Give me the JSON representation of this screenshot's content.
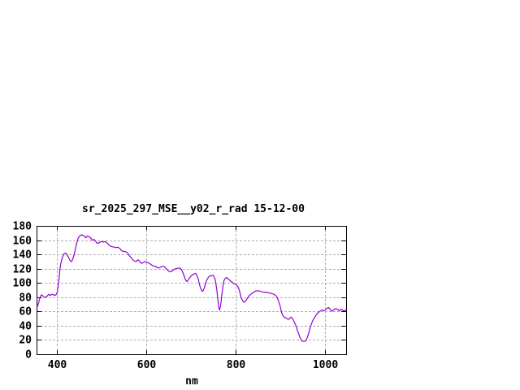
{
  "window": {
    "background": "#ffffff"
  },
  "chart": {
    "title": "sr_2025_297_MSE__y02_r_rad 15-12-00",
    "xlabel": "nm"
  },
  "chart_data": {
    "type": "line",
    "title": "sr_2025_297_MSE__y02_r_rad 15-12-00",
    "xlabel": "nm",
    "ylabel": "",
    "xlim": [
      355.5,
      1047
    ],
    "ylim": [
      0,
      180
    ],
    "x_ticks": [
      400,
      600,
      800,
      1000
    ],
    "y_ticks": [
      0,
      20,
      40,
      60,
      80,
      100,
      120,
      140,
      160,
      180
    ],
    "grid": true,
    "legend": "none",
    "colors": {
      "line": "#9400d3",
      "grid": "#adadad",
      "frame": "#000000",
      "text": "#000000",
      "background": "#ffffff"
    },
    "series": [
      {
        "name": "sr_2025_297_MSE__y02_r_rad",
        "points": [
          [
            356,
            65
          ],
          [
            358,
            68
          ],
          [
            360,
            72
          ],
          [
            362,
            77
          ],
          [
            364,
            81
          ],
          [
            366,
            83
          ],
          [
            368,
            83
          ],
          [
            370,
            81.5
          ],
          [
            372,
            80.5
          ],
          [
            374,
            79.5
          ],
          [
            376,
            80
          ],
          [
            378,
            81
          ],
          [
            380,
            82
          ],
          [
            382,
            83.5
          ],
          [
            384,
            84
          ],
          [
            386,
            82.5
          ],
          [
            388,
            83
          ],
          [
            390,
            84
          ],
          [
            392,
            84
          ],
          [
            394,
            83
          ],
          [
            396,
            82.5
          ],
          [
            398,
            83
          ],
          [
            400,
            84
          ],
          [
            402,
            88
          ],
          [
            404,
            96
          ],
          [
            406,
            108
          ],
          [
            408,
            120
          ],
          [
            410,
            128
          ],
          [
            412,
            133
          ],
          [
            414,
            137
          ],
          [
            416,
            140
          ],
          [
            418,
            141.5
          ],
          [
            420,
            142
          ],
          [
            422,
            141
          ],
          [
            424,
            139.5
          ],
          [
            426,
            137
          ],
          [
            428,
            134.5
          ],
          [
            430,
            132
          ],
          [
            432,
            130.5
          ],
          [
            434,
            130
          ],
          [
            436,
            133
          ],
          [
            438,
            137
          ],
          [
            440,
            141
          ],
          [
            442,
            147
          ],
          [
            444,
            153
          ],
          [
            446,
            158
          ],
          [
            448,
            162
          ],
          [
            450,
            164.5
          ],
          [
            452,
            166
          ],
          [
            454,
            166.5
          ],
          [
            456,
            167.5
          ],
          [
            458,
            167
          ],
          [
            460,
            166.5
          ],
          [
            462,
            166
          ],
          [
            464,
            164
          ],
          [
            466,
            163.5
          ],
          [
            468,
            165.5
          ],
          [
            470,
            165.5
          ],
          [
            472,
            165
          ],
          [
            474,
            164.5
          ],
          [
            476,
            163.5
          ],
          [
            478,
            161.5
          ],
          [
            480,
            160
          ],
          [
            482,
            160.5
          ],
          [
            484,
            161
          ],
          [
            486,
            159.5
          ],
          [
            488,
            158
          ],
          [
            490,
            156
          ],
          [
            492,
            155.5
          ],
          [
            494,
            156
          ],
          [
            496,
            156.5
          ],
          [
            498,
            157.5
          ],
          [
            500,
            158
          ],
          [
            503,
            157.5
          ],
          [
            506,
            157.5
          ],
          [
            509,
            158
          ],
          [
            512,
            156.5
          ],
          [
            515,
            155
          ],
          [
            518,
            152.5
          ],
          [
            521,
            151.5
          ],
          [
            524,
            151
          ],
          [
            527,
            150.5
          ],
          [
            530,
            150
          ],
          [
            533,
            149.5
          ],
          [
            536,
            150
          ],
          [
            539,
            149.5
          ],
          [
            542,
            148
          ],
          [
            545,
            145.5
          ],
          [
            548,
            144.5
          ],
          [
            551,
            144
          ],
          [
            554,
            144
          ],
          [
            557,
            143
          ],
          [
            560,
            141
          ],
          [
            563,
            138
          ],
          [
            566,
            136
          ],
          [
            569,
            133.5
          ],
          [
            572,
            131.5
          ],
          [
            575,
            130.5
          ],
          [
            578,
            130
          ],
          [
            580,
            131.5
          ],
          [
            582,
            132.5
          ],
          [
            584,
            131.5
          ],
          [
            586,
            130
          ],
          [
            588,
            128
          ],
          [
            590,
            127.5
          ],
          [
            592,
            128
          ],
          [
            594,
            128.5
          ],
          [
            596,
            129.5
          ],
          [
            598,
            130
          ],
          [
            601,
            129
          ],
          [
            604,
            128.5
          ],
          [
            607,
            127.5
          ],
          [
            610,
            126.5
          ],
          [
            613,
            125
          ],
          [
            616,
            124
          ],
          [
            619,
            123.5
          ],
          [
            622,
            123
          ],
          [
            625,
            121.5
          ],
          [
            628,
            121
          ],
          [
            631,
            121.5
          ],
          [
            634,
            122.5
          ],
          [
            637,
            123.5
          ],
          [
            640,
            123
          ],
          [
            643,
            121.5
          ],
          [
            646,
            119.5
          ],
          [
            649,
            117.5
          ],
          [
            652,
            116
          ],
          [
            655,
            115.5
          ],
          [
            658,
            116.5
          ],
          [
            661,
            118
          ],
          [
            664,
            119.5
          ],
          [
            667,
            120
          ],
          [
            670,
            120.5
          ],
          [
            673,
            121
          ],
          [
            676,
            120.5
          ],
          [
            679,
            119
          ],
          [
            681,
            116.5
          ],
          [
            683,
            113.5
          ],
          [
            685,
            110
          ],
          [
            687,
            106.5
          ],
          [
            689,
            103.5
          ],
          [
            691,
            102
          ],
          [
            693,
            103
          ],
          [
            695,
            105
          ],
          [
            698,
            107.5
          ],
          [
            701,
            110
          ],
          [
            704,
            111.5
          ],
          [
            707,
            112.5
          ],
          [
            710,
            113.5
          ],
          [
            712,
            112.5
          ],
          [
            714,
            110
          ],
          [
            716,
            106.5
          ],
          [
            718,
            102
          ],
          [
            720,
            96.5
          ],
          [
            722,
            93
          ],
          [
            724,
            89.5
          ],
          [
            726,
            88
          ],
          [
            728,
            89.5
          ],
          [
            730,
            92.5
          ],
          [
            732,
            97
          ],
          [
            734,
            101
          ],
          [
            736,
            104
          ],
          [
            738,
            106.5
          ],
          [
            740,
            108.5
          ],
          [
            742,
            109.5
          ],
          [
            744,
            110
          ],
          [
            746,
            110
          ],
          [
            748,
            110.5
          ],
          [
            750,
            110.5
          ],
          [
            752,
            108.5
          ],
          [
            754,
            105.5
          ],
          [
            756,
            99
          ],
          [
            758,
            91
          ],
          [
            760,
            79
          ],
          [
            762,
            68
          ],
          [
            764,
            62
          ],
          [
            766,
            66
          ],
          [
            768,
            75
          ],
          [
            770,
            87
          ],
          [
            772,
            96
          ],
          [
            774,
            103
          ],
          [
            776,
            105.5
          ],
          [
            778,
            107
          ],
          [
            780,
            107.5
          ],
          [
            782,
            106.5
          ],
          [
            784,
            105.5
          ],
          [
            786,
            104.5
          ],
          [
            788,
            103
          ],
          [
            791,
            101.5
          ],
          [
            794,
            100
          ],
          [
            797,
            99
          ],
          [
            800,
            98
          ],
          [
            803,
            96.5
          ],
          [
            806,
            94
          ],
          [
            809,
            88.5
          ],
          [
            812,
            80.5
          ],
          [
            814,
            77.5
          ],
          [
            816,
            75.5
          ],
          [
            818,
            73.5
          ],
          [
            820,
            73
          ],
          [
            822,
            74.5
          ],
          [
            824,
            76
          ],
          [
            826,
            78
          ],
          [
            828,
            80
          ],
          [
            830,
            82
          ],
          [
            833,
            83.5
          ],
          [
            836,
            85
          ],
          [
            839,
            86.5
          ],
          [
            842,
            87.5
          ],
          [
            845,
            88.5
          ],
          [
            848,
            89
          ],
          [
            851,
            89
          ],
          [
            854,
            88.5
          ],
          [
            857,
            88
          ],
          [
            860,
            87.5
          ],
          [
            863,
            87
          ],
          [
            866,
            87
          ],
          [
            869,
            87
          ],
          [
            872,
            86.5
          ],
          [
            875,
            86
          ],
          [
            878,
            85.5
          ],
          [
            881,
            85
          ],
          [
            884,
            84.5
          ],
          [
            887,
            83.5
          ],
          [
            890,
            82
          ],
          [
            892,
            80.5
          ],
          [
            894,
            78
          ],
          [
            896,
            74.5
          ],
          [
            898,
            71
          ],
          [
            900,
            66.5
          ],
          [
            902,
            61
          ],
          [
            904,
            56.5
          ],
          [
            906,
            54
          ],
          [
            908,
            52.5
          ],
          [
            910,
            51.5
          ],
          [
            912,
            51
          ],
          [
            914,
            50.5
          ],
          [
            916,
            49.5
          ],
          [
            918,
            49
          ],
          [
            920,
            49.5
          ],
          [
            922,
            51
          ],
          [
            924,
            52
          ],
          [
            926,
            51
          ],
          [
            928,
            49
          ],
          [
            930,
            47
          ],
          [
            932,
            44
          ],
          [
            934,
            41.5
          ],
          [
            936,
            38
          ],
          [
            938,
            34
          ],
          [
            940,
            30.5
          ],
          [
            942,
            27
          ],
          [
            944,
            23.5
          ],
          [
            946,
            21
          ],
          [
            948,
            19
          ],
          [
            950,
            18
          ],
          [
            952,
            18
          ],
          [
            954,
            18
          ],
          [
            956,
            18.5
          ],
          [
            958,
            20
          ],
          [
            960,
            23
          ],
          [
            962,
            27
          ],
          [
            964,
            31
          ],
          [
            966,
            36
          ],
          [
            968,
            40
          ],
          [
            970,
            43.5
          ],
          [
            972,
            46.5
          ],
          [
            974,
            49
          ],
          [
            976,
            51
          ],
          [
            978,
            53
          ],
          [
            980,
            55
          ],
          [
            982,
            56.5
          ],
          [
            984,
            58
          ],
          [
            986,
            59
          ],
          [
            988,
            60
          ],
          [
            990,
            61
          ],
          [
            992,
            61.5
          ],
          [
            994,
            62
          ],
          [
            996,
            61.5
          ],
          [
            998,
            61
          ],
          [
            1000,
            61.5
          ],
          [
            1002,
            63
          ],
          [
            1004,
            64
          ],
          [
            1006,
            65
          ],
          [
            1008,
            65.5
          ],
          [
            1010,
            64
          ],
          [
            1012,
            62.5
          ],
          [
            1014,
            61
          ],
          [
            1016,
            60.5
          ],
          [
            1018,
            61.5
          ],
          [
            1020,
            62.5
          ],
          [
            1022,
            63.5
          ],
          [
            1024,
            64
          ],
          [
            1026,
            63.5
          ],
          [
            1028,
            63
          ],
          [
            1030,
            62
          ],
          [
            1032,
            61
          ],
          [
            1034,
            62
          ],
          [
            1036,
            63
          ],
          [
            1038,
            62.5
          ],
          [
            1040,
            61.5
          ],
          [
            1042,
            61
          ],
          [
            1044,
            61.5
          ],
          [
            1046,
            62
          ],
          [
            1047,
            62
          ]
        ]
      }
    ]
  }
}
